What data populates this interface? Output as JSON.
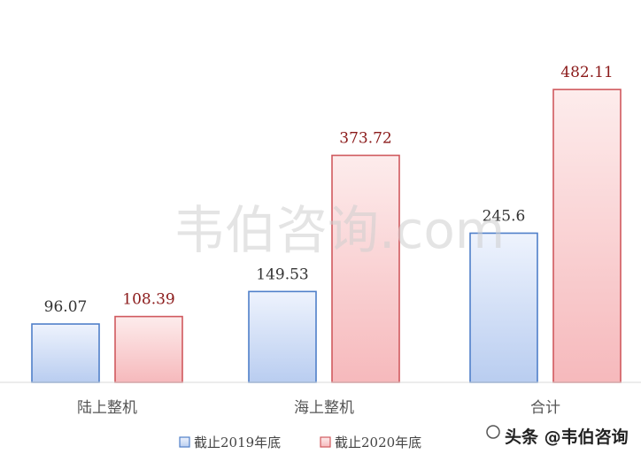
{
  "chart_data": {
    "type": "bar",
    "categories": [
      "陆上整机",
      "海上整机",
      "合计"
    ],
    "series": [
      {
        "name": "截止2019年底",
        "values": [
          96.07,
          149.53,
          245.6
        ],
        "labels": [
          "96.07",
          "149.53",
          "245.6"
        ]
      },
      {
        "name": "截止2020年底",
        "values": [
          108.39,
          373.72,
          482.11
        ],
        "labels": [
          "108.39",
          "373.72",
          "482.11"
        ]
      }
    ],
    "ylim": [
      0,
      510
    ],
    "grid": false,
    "legend": "bottom-center"
  },
  "watermark": "韦伯咨询.com",
  "badge": "头条 @韦伯咨询",
  "colors": {
    "blue_fill": "#cdddf6",
    "blue_stroke": "#4f7fc9",
    "red_fill": "#f9cfd1",
    "red_stroke": "#d0595e"
  }
}
